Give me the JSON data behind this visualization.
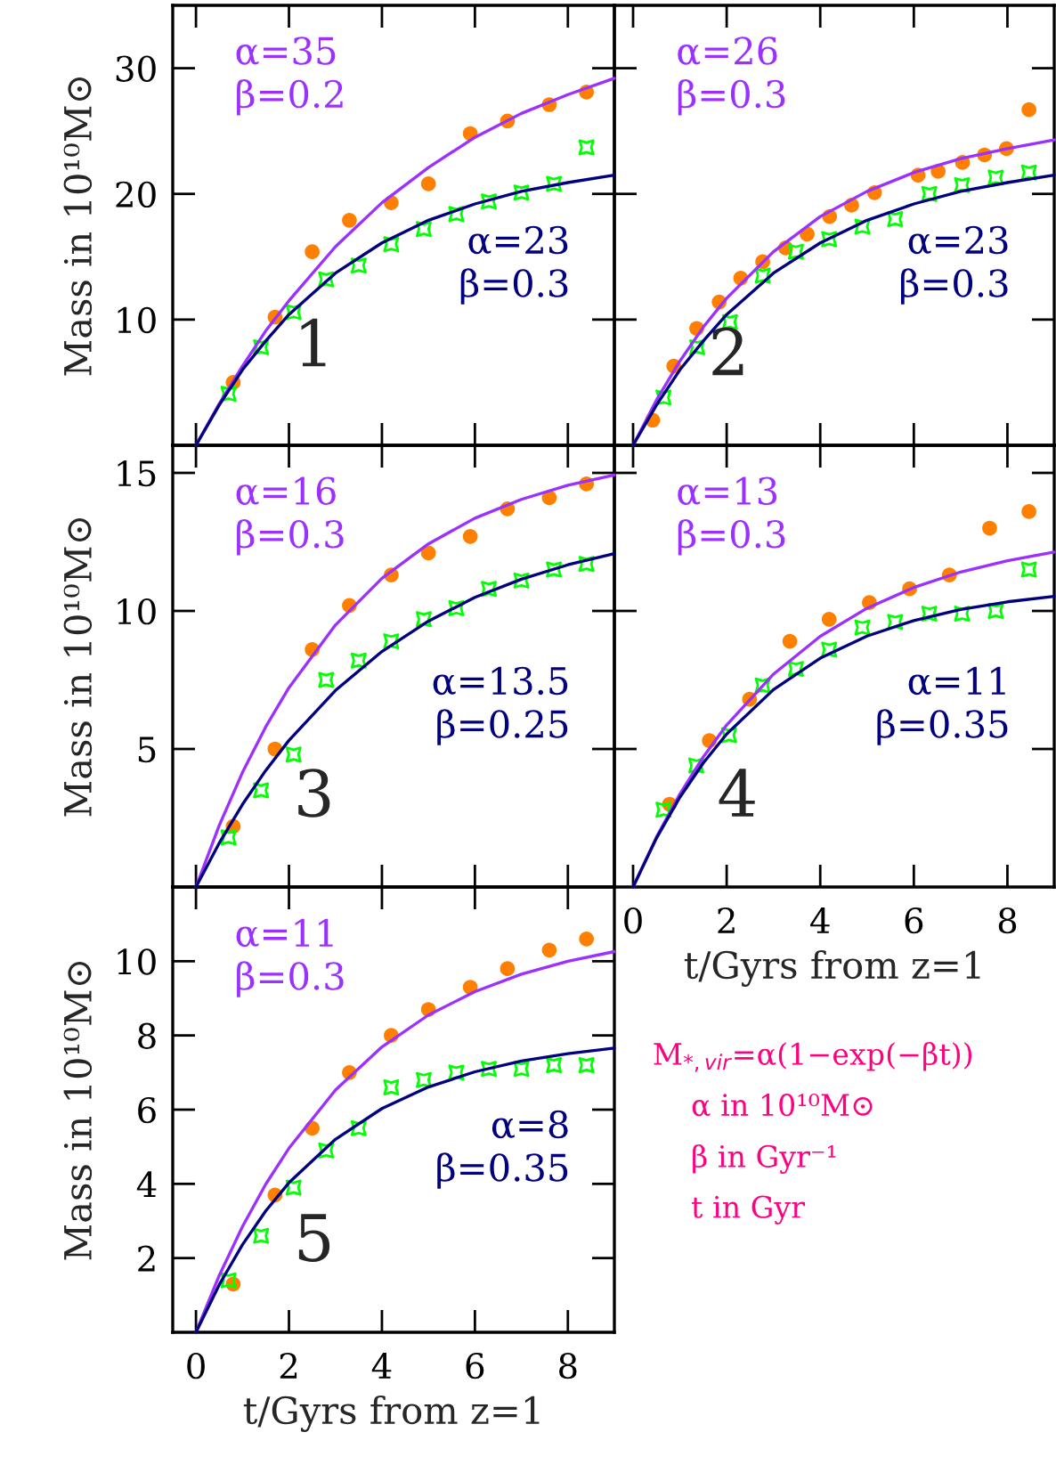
{
  "chart_data": [
    {
      "type": "scatter",
      "ylabel": "Mass in 10¹⁰M⊙",
      "xlim": [
        -0.5,
        9.0
      ],
      "ylim": [
        0,
        35
      ],
      "xticks": [
        0,
        2,
        4,
        6,
        8
      ],
      "yticks": [
        10,
        20,
        30
      ],
      "tick_labels": "y",
      "annotations": [
        "1"
      ],
      "series": [
        {
          "type": "scatter",
          "color": "#ff7f00",
          "marker": "circle",
          "x": [
            0.8,
            1.7,
            2.5,
            3.3,
            4.2,
            5.0,
            5.9,
            6.7,
            7.6,
            8.4
          ],
          "values": [
            5.0,
            10.2,
            15.4,
            17.9,
            19.3,
            20.8,
            24.8,
            25.8,
            27.1,
            28.1
          ]
        },
        {
          "type": "scatter",
          "color": "#00ff00",
          "marker": "star",
          "x": [
            0.7,
            1.4,
            2.1,
            2.8,
            3.5,
            4.2,
            4.9,
            5.6,
            6.3,
            7.0,
            7.7,
            8.4
          ],
          "values": [
            4.1,
            7.8,
            10.6,
            13.2,
            14.3,
            16.0,
            17.2,
            18.4,
            19.4,
            20.1,
            20.8,
            23.7
          ]
        },
        {
          "type": "line",
          "name": "α=35\nβ=0.2",
          "color": "#9b30ff",
          "x": [
            0,
            0.5,
            1,
            1.5,
            2,
            3,
            4,
            5,
            6,
            7,
            8,
            9
          ],
          "values": [
            0,
            3.3,
            6.3,
            9.1,
            11.5,
            15.8,
            19.3,
            22.1,
            24.5,
            26.4,
            27.9,
            29.2
          ]
        },
        {
          "type": "line",
          "name": "α=23\nβ=0.3",
          "color": "#000080",
          "x": [
            0,
            0.5,
            1,
            1.5,
            2,
            3,
            4,
            5,
            6,
            7,
            8,
            9
          ],
          "values": [
            0,
            3.2,
            6.0,
            8.3,
            10.4,
            13.7,
            16.1,
            17.9,
            19.2,
            20.2,
            20.9,
            21.5
          ]
        }
      ]
    },
    {
      "type": "scatter",
      "xlim": [
        -0.4,
        9.0
      ],
      "ylim": [
        0,
        35
      ],
      "xticks": [
        0,
        2,
        4,
        6,
        8
      ],
      "yticks": [
        10,
        20,
        30
      ],
      "tick_labels": false,
      "annotations": [
        "2"
      ],
      "series": [
        {
          "type": "scatter",
          "color": "#ff7f00",
          "marker": "circle",
          "x": [
            0.42,
            0.87,
            1.36,
            1.84,
            2.3,
            2.77,
            3.26,
            3.72,
            4.2,
            4.67,
            5.16,
            6.09,
            6.52,
            7.04,
            7.51,
            7.98,
            8.46
          ],
          "values": [
            2.0,
            6.3,
            9.3,
            11.4,
            13.3,
            14.6,
            15.7,
            16.8,
            18.2,
            19.1,
            20.1,
            21.5,
            21.8,
            22.5,
            23.1,
            23.6,
            26.7
          ]
        },
        {
          "type": "scatter",
          "color": "#00ff00",
          "marker": "star",
          "x": [
            0.65,
            1.37,
            2.07,
            2.77,
            3.48,
            4.19,
            4.9,
            5.6,
            6.33,
            7.03,
            7.75,
            8.46
          ],
          "values": [
            3.8,
            7.8,
            9.8,
            13.5,
            15.4,
            16.4,
            17.4,
            18.0,
            20.0,
            20.7,
            21.3,
            21.7
          ]
        },
        {
          "type": "line",
          "name": "α=26\nβ=0.3",
          "color": "#9b30ff",
          "x": [
            0,
            0.5,
            1,
            1.5,
            2,
            3,
            4,
            5,
            6,
            7,
            8,
            9
          ],
          "values": [
            0,
            3.6,
            6.7,
            9.4,
            11.7,
            15.4,
            18.2,
            20.2,
            21.7,
            22.8,
            23.6,
            24.3
          ]
        },
        {
          "type": "line",
          "name": "α=23\nβ=0.3",
          "color": "#000080",
          "x": [
            0,
            0.5,
            1,
            1.5,
            2,
            3,
            4,
            5,
            6,
            7,
            8,
            9
          ],
          "values": [
            0,
            3.2,
            6.0,
            8.3,
            10.4,
            13.7,
            16.1,
            17.9,
            19.2,
            20.2,
            20.9,
            21.5
          ]
        }
      ]
    },
    {
      "type": "scatter",
      "ylabel": "Mass in 10¹⁰M⊙",
      "xlim": [
        -0.5,
        9.0
      ],
      "ylim": [
        0,
        16
      ],
      "xticks": [
        0,
        2,
        4,
        6,
        8
      ],
      "yticks": [
        5,
        10,
        15
      ],
      "tick_labels": "y",
      "annotations": [
        "3"
      ],
      "series": [
        {
          "type": "scatter",
          "color": "#ff7f00",
          "marker": "circle",
          "x": [
            0.8,
            1.7,
            2.5,
            3.3,
            4.2,
            5.0,
            5.9,
            6.7,
            7.6,
            8.4
          ],
          "values": [
            2.2,
            5.0,
            8.6,
            10.2,
            11.3,
            12.1,
            12.7,
            13.7,
            14.1,
            14.6
          ]
        },
        {
          "type": "scatter",
          "color": "#00ff00",
          "marker": "star",
          "x": [
            0.7,
            1.4,
            2.1,
            2.8,
            3.5,
            4.2,
            4.9,
            5.6,
            6.3,
            7.0,
            7.7,
            8.4
          ],
          "values": [
            1.8,
            3.5,
            4.8,
            7.5,
            8.2,
            8.9,
            9.7,
            10.1,
            10.8,
            11.1,
            11.5,
            11.7
          ]
        },
        {
          "type": "line",
          "name": "α=16\nβ=0.3",
          "color": "#9b30ff",
          "x": [
            0,
            0.5,
            1,
            1.5,
            2,
            3,
            4,
            5,
            6,
            7,
            8,
            9
          ],
          "values": [
            0,
            2.23,
            4.15,
            5.8,
            7.22,
            9.49,
            11.18,
            12.43,
            13.36,
            14.04,
            14.55,
            14.92
          ]
        },
        {
          "type": "line",
          "name": "α=13.5\nβ=0.25",
          "color": "#000080",
          "x": [
            0,
            0.5,
            1,
            1.5,
            2,
            3,
            4,
            5,
            6,
            7,
            8,
            9
          ],
          "values": [
            0,
            1.59,
            2.99,
            4.22,
            5.31,
            7.12,
            8.53,
            9.63,
            10.49,
            11.15,
            11.67,
            12.08
          ]
        }
      ]
    },
    {
      "type": "scatter",
      "xlabel": "t/Gyrs from z=1",
      "xlim": [
        -0.4,
        9.0
      ],
      "ylim": [
        0,
        16
      ],
      "xticks": [
        0,
        2,
        4,
        6,
        8
      ],
      "yticks": [
        5,
        10,
        15
      ],
      "tick_labels": "x",
      "annotations": [
        "4"
      ],
      "series": [
        {
          "type": "scatter",
          "color": "#ff7f00",
          "marker": "circle",
          "x": [
            0.78,
            1.63,
            2.49,
            3.35,
            4.19,
            5.05,
            5.91,
            6.76,
            7.62,
            8.46
          ],
          "values": [
            3.0,
            5.3,
            6.8,
            8.9,
            9.7,
            10.3,
            10.8,
            11.3,
            13.0,
            13.6
          ]
        },
        {
          "type": "scatter",
          "color": "#00ff00",
          "marker": "star",
          "x": [
            0.65,
            1.35,
            2.05,
            2.77,
            3.48,
            4.19,
            4.9,
            5.6,
            6.33,
            7.03,
            7.75,
            8.46
          ],
          "values": [
            2.8,
            4.4,
            5.5,
            7.3,
            7.9,
            8.6,
            9.4,
            9.6,
            9.9,
            9.9,
            10.0,
            11.5
          ]
        },
        {
          "type": "line",
          "name": "α=13\nβ=0.3",
          "color": "#9b30ff",
          "x": [
            0,
            0.5,
            1,
            1.5,
            2,
            3,
            4,
            5,
            6,
            7,
            8,
            9
          ],
          "values": [
            0,
            1.81,
            3.37,
            4.71,
            5.87,
            7.71,
            9.08,
            10.1,
            10.85,
            11.41,
            11.82,
            12.13
          ]
        },
        {
          "type": "line",
          "name": "α=11\nβ=0.35",
          "color": "#000080",
          "x": [
            0,
            0.5,
            1,
            1.5,
            2,
            3,
            4,
            5,
            6,
            7,
            8,
            9
          ],
          "values": [
            0,
            1.77,
            3.25,
            4.49,
            5.54,
            7.15,
            8.29,
            9.09,
            9.65,
            10.05,
            10.33,
            10.53
          ]
        }
      ]
    },
    {
      "type": "scatter",
      "xlabel": "t/Gyrs from z=1",
      "ylabel": "Mass in 10¹⁰M⊙",
      "xlim": [
        -0.5,
        9.0
      ],
      "ylim": [
        0,
        12
      ],
      "xticks": [
        0,
        2,
        4,
        6,
        8
      ],
      "yticks": [
        2,
        4,
        6,
        8,
        10
      ],
      "annotations": [
        "5"
      ],
      "series": [
        {
          "type": "scatter",
          "color": "#ff7f00",
          "marker": "circle",
          "x": [
            0.8,
            1.7,
            2.5,
            3.3,
            4.2,
            5.0,
            5.9,
            6.7,
            7.6,
            8.4
          ],
          "values": [
            1.3,
            3.7,
            5.5,
            7.0,
            8.0,
            8.7,
            9.3,
            9.8,
            10.3,
            10.6
          ]
        },
        {
          "type": "scatter",
          "color": "#00ff00",
          "marker": "star",
          "x": [
            0.7,
            1.4,
            2.1,
            2.8,
            3.5,
            4.2,
            4.9,
            5.6,
            6.3,
            7.0,
            7.7,
            8.4
          ],
          "values": [
            1.4,
            2.6,
            3.9,
            4.9,
            5.5,
            6.6,
            6.8,
            7.0,
            7.1,
            7.1,
            7.2,
            7.2
          ]
        },
        {
          "type": "line",
          "name": "α=11\nβ=0.3",
          "color": "#9b30ff",
          "x": [
            0,
            0.5,
            1,
            1.5,
            2,
            3,
            4,
            5,
            6,
            7,
            8,
            9
          ],
          "values": [
            0,
            1.53,
            2.85,
            3.99,
            4.96,
            6.53,
            7.69,
            8.55,
            9.18,
            9.65,
            10.0,
            10.26
          ]
        },
        {
          "type": "line",
          "name": "α=8\nβ=0.35",
          "color": "#000080",
          "x": [
            0,
            0.5,
            1,
            1.5,
            2,
            3,
            4,
            5,
            6,
            7,
            8,
            9
          ],
          "values": [
            0,
            1.28,
            2.36,
            3.27,
            4.03,
            5.2,
            6.03,
            6.61,
            7.02,
            7.31,
            7.51,
            7.66
          ]
        }
      ]
    },
    {
      "type": "other",
      "annotations": [
        "M$_{*,vir}$=α(1−exp(−βt))",
        "α in 10¹⁰M⊙",
        "β in Gyr⁻¹",
        "t in Gyr"
      ]
    }
  ]
}
